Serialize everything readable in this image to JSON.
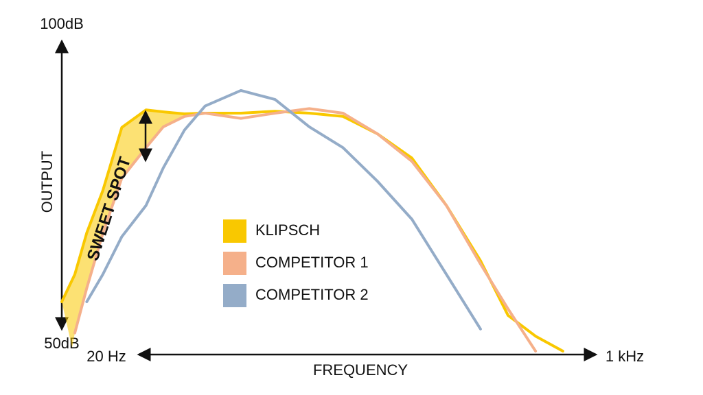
{
  "chart_data": {
    "type": "line",
    "x_label": "FREQUENCY",
    "y_label": "OUTPUT",
    "annotation": "SWEET SPOT",
    "xscale": "log",
    "xlim": [
      20,
      1000
    ],
    "xticks": [
      {
        "value": 20,
        "label": "20 Hz"
      },
      {
        "value": 1000,
        "label": "1 kHz"
      }
    ],
    "ylim": [
      50,
      100
    ],
    "yticks": [
      {
        "value": 50,
        "label": "50dB"
      },
      {
        "value": 100,
        "label": "100dB"
      }
    ],
    "x": [
      20,
      22,
      24,
      27,
      31,
      37,
      42,
      49,
      57,
      74,
      95,
      122,
      156,
      201,
      258,
      332,
      426,
      521,
      637,
      778
    ],
    "series": [
      {
        "name": "KLIPSCH",
        "color": "#f9c800",
        "values": [
          57.6,
          61.8,
          68.2,
          74.7,
          84.4,
          87.1,
          86.8,
          86.5,
          86.6,
          86.6,
          86.9,
          86.6,
          86.1,
          83.4,
          79.7,
          72.4,
          63.9,
          55.5,
          52.3,
          50
        ]
      },
      {
        "name": "COMPETITOR 1",
        "color": "#f5b08a",
        "values": [
          null,
          52.8,
          59.7,
          68.1,
          76.6,
          81.3,
          84.5,
          86.1,
          86.6,
          85.8,
          86.6,
          87.3,
          86.6,
          83.4,
          79.2,
          72.4,
          63.4,
          56.5,
          50,
          null
        ]
      },
      {
        "name": "COMPETITOR 2",
        "color": "#94acc8",
        "values": [
          null,
          null,
          57.6,
          61.8,
          67.6,
          72.4,
          78.2,
          84.0,
          87.7,
          90.1,
          88.7,
          84.5,
          81.3,
          76.1,
          70.3,
          61.8,
          53.4,
          null,
          null,
          null
        ]
      }
    ]
  }
}
